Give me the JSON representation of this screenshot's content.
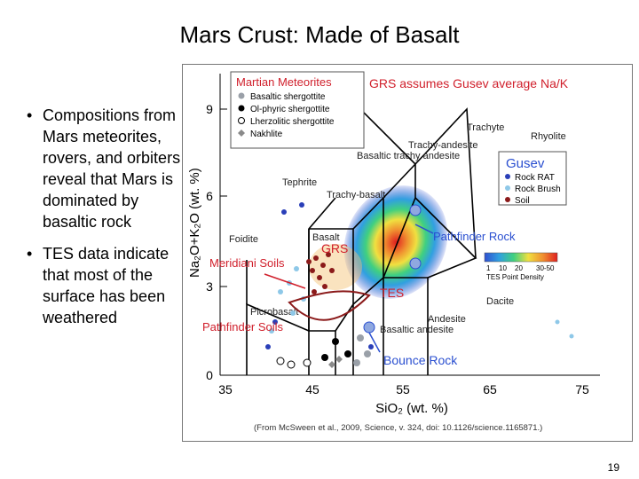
{
  "slide": {
    "title": "Mars Crust: Made of Basalt",
    "bullets": [
      "Compositions from Mars meteorites, rovers, and orbiters reveal that Mars is dominated by basaltic rock",
      "TES data indicate that most of the surface has been weathered"
    ],
    "page_number": "19"
  },
  "figure": {
    "y_axis_label": "Na₂O+K₂O (wt. %)",
    "x_axis_label": "SiO₂ (wt. %)",
    "x_ticks": [
      "35",
      "45",
      "55",
      "65",
      "75"
    ],
    "y_ticks": [
      "0",
      "3",
      "6",
      "9"
    ],
    "header_note": "GRS assumes Gusev average Na/K",
    "citation": "(From McSween et al., 2009, Science, v. 324, doi: 10.1126/science.1165871.)",
    "meteorites_legend": {
      "title": "Martian Meteorites",
      "items": [
        {
          "label": "Basaltic shergottite",
          "color": "#9aa0a8",
          "shape": "circle"
        },
        {
          "label": "Ol-phyric shergottite",
          "color": "#000000",
          "shape": "circle"
        },
        {
          "label": "Lherzolitic shergottite",
          "color": "#ffffff",
          "shape": "circle"
        },
        {
          "label": "Nakhlite",
          "color": "#8a8a8a",
          "shape": "diamond"
        }
      ]
    },
    "gusev_legend": {
      "title": "Gusev",
      "items": [
        {
          "label": "Rock RAT",
          "color": "#2a3fb8"
        },
        {
          "label": "Rock Brush",
          "color": "#8ec8e8"
        },
        {
          "label": "Soil",
          "color": "#8b1a1a"
        }
      ]
    },
    "density_scale": {
      "ticks": [
        "1",
        "10",
        "20",
        "30-50"
      ],
      "label": "TES Point Density",
      "colors": [
        "#3050d0",
        "#30a0e0",
        "#40d080",
        "#f0e040",
        "#f09030",
        "#e02020"
      ]
    },
    "fields": {
      "trachyte": "Trachyte",
      "rhyolite": "Rhyolite",
      "trachyandesite": "Trachy-andesite",
      "basaltic_trachyandesite": "Basaltic trachy andesite",
      "tephrite": "Tephrite",
      "trachybasalt": "Trachy-basalt",
      "foidite": "Foidite",
      "basalt": "Basalt",
      "dacite": "Dacite",
      "andesite": "Andesite",
      "basaltic_andesite": "Basaltic andesite",
      "picrobasalt": "Picrobasalt"
    },
    "annotations": {
      "grs": "GRS",
      "tes": "TES",
      "meridiani_soils": "Meridiani Soils",
      "pathfinder_soils": "Pathfinder Soils",
      "pathfinder_rock": "Pathfinder Rock",
      "bounce_rock": "Bounce Rock"
    },
    "colors": {
      "annotation_red": "#d01f2b",
      "annotation_blue": "#2a4fd0"
    }
  }
}
